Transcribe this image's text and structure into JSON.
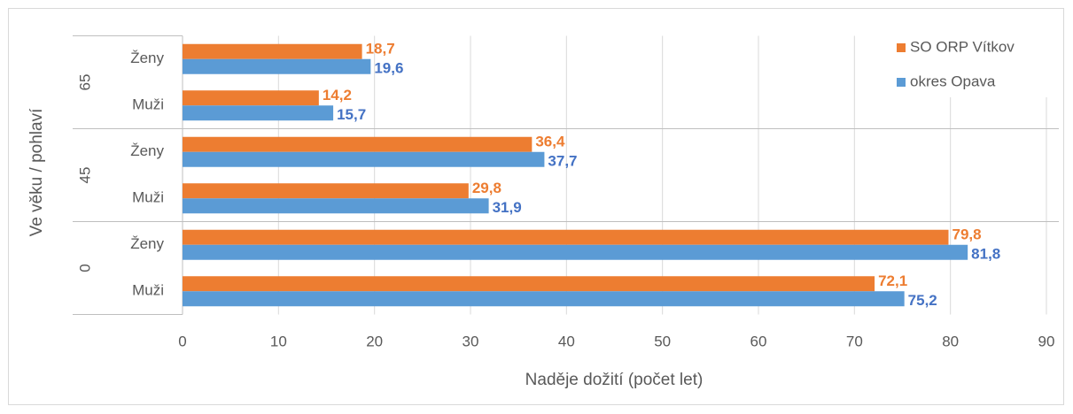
{
  "chart_data": {
    "type": "bar",
    "orientation": "horizontal",
    "groups": [
      {
        "name": "0",
        "categories": [
          "Muži",
          "Ženy"
        ]
      },
      {
        "name": "45",
        "categories": [
          "Muži",
          "Ženy"
        ]
      },
      {
        "name": "65",
        "categories": [
          "Muži",
          "Ženy"
        ]
      }
    ],
    "series": [
      {
        "name": "SO ORP Vítkov",
        "color": "#ed7d31",
        "label_color": "#ed7d31",
        "values": [
          72.1,
          79.8,
          29.8,
          36.4,
          14.2,
          18.7
        ],
        "value_labels": [
          "72,1",
          "79,8",
          "29,8",
          "36,4",
          "14,2",
          "18,7"
        ]
      },
      {
        "name": "okres Opava",
        "color": "#5b9bd5",
        "label_color": "#4472c4",
        "values": [
          75.2,
          81.8,
          31.9,
          37.7,
          15.7,
          19.6
        ],
        "value_labels": [
          "75,2",
          "81,8",
          "31,9",
          "37,7",
          "15,7",
          "19,6"
        ]
      }
    ],
    "xlim": [
      0,
      90
    ],
    "xticks": [
      0,
      10,
      20,
      30,
      40,
      50,
      60,
      70,
      80,
      90
    ],
    "x_label": "Naděje dožití (počet let)",
    "y_label": "Ve věku / pohlaví",
    "grid": true,
    "legend": "top-right"
  }
}
